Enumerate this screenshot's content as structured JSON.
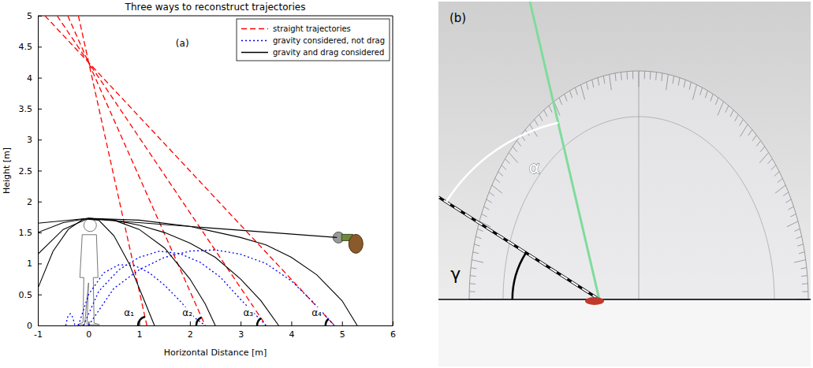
{
  "chart_data": {
    "type": "line",
    "title": "Three ways to reconstruct trajectories",
    "xlabel": "Horizontal Distance [m]",
    "ylabel": "Height [m]",
    "xlim": [
      -1,
      6
    ],
    "ylim": [
      0,
      5
    ],
    "xticks": [
      -1,
      0,
      1,
      2,
      3,
      4,
      5,
      6
    ],
    "yticks": [
      0,
      0.5,
      1,
      1.5,
      2,
      2.5,
      3,
      3.5,
      4,
      4.5,
      5
    ],
    "grid": false,
    "legend": "upper right",
    "series": [
      {
        "name": "straight trajectories",
        "color": "#ff0000",
        "line_style": "dashed",
        "lines": [
          {
            "x": [
              -0.2,
              1.15
            ],
            "values": [
              5,
              0
            ]
          },
          {
            "x": [
              -0.41,
              2.3
            ],
            "values": [
              5,
              0
            ]
          },
          {
            "x": [
              -0.62,
              3.5
            ],
            "values": [
              5,
              0
            ]
          },
          {
            "x": [
              -0.86,
              4.85
            ],
            "values": [
              5,
              0
            ]
          }
        ]
      },
      {
        "name": "gravity considered, not drag",
        "color": "#0000ff",
        "line_style": "dotted",
        "lines": [
          {
            "x": [
              -0.45,
              -0.41,
              -0.36,
              -0.31,
              -0.27
            ],
            "values": [
              0,
              0.14,
              0.19,
              0.13,
              0
            ]
          },
          {
            "x": [
              -0.2,
              0,
              0.3,
              0.6,
              0.9,
              1.2,
              1.5,
              1.8,
              2.1,
              2.3
            ],
            "values": [
              0,
              0.5,
              0.85,
              0.98,
              0.97,
              0.85,
              0.65,
              0.4,
              0.12,
              0
            ]
          },
          {
            "x": [
              -0.1,
              0.2,
              0.6,
              1,
              1.4,
              1.8,
              2.2,
              2.6,
              3,
              3.5
            ],
            "values": [
              0,
              0.55,
              0.9,
              1.1,
              1.2,
              1.16,
              1.02,
              0.78,
              0.42,
              0
            ]
          },
          {
            "x": [
              0,
              0.5,
              1,
              1.5,
              2,
              2.5,
              3,
              3.5,
              4,
              4.4,
              4.85
            ],
            "values": [
              0,
              0.6,
              0.9,
              1.1,
              1.2,
              1.22,
              1.15,
              1.0,
              0.72,
              0.4,
              0
            ]
          }
        ]
      },
      {
        "name": "gravity and drag considered",
        "color": "#000000",
        "line_style": "solid",
        "lines": [
          {
            "x": [
              -1,
              -0.7,
              -0.4,
              -0.1,
              0.2,
              0.5,
              0.8,
              1.1,
              1.3
            ],
            "values": [
              0.6,
              1.2,
              1.55,
              1.72,
              1.7,
              1.45,
              1.0,
              0.4,
              0
            ]
          },
          {
            "x": [
              -1,
              -0.5,
              0,
              0.5,
              1,
              1.5,
              2,
              2.3,
              2.5
            ],
            "values": [
              1.15,
              1.55,
              1.73,
              1.7,
              1.55,
              1.25,
              0.75,
              0.35,
              0
            ]
          },
          {
            "x": [
              -1,
              -0.5,
              0,
              0.5,
              1,
              1.5,
              2,
              2.5,
              3,
              3.4,
              3.75
            ],
            "values": [
              1.5,
              1.66,
              1.73,
              1.7,
              1.62,
              1.5,
              1.33,
              1.1,
              0.75,
              0.4,
              0
            ]
          },
          {
            "x": [
              -1,
              0,
              1,
              2,
              3,
              3.5,
              4,
              4.5,
              5,
              5.3
            ],
            "values": [
              1.65,
              1.73,
              1.7,
              1.6,
              1.42,
              1.3,
              1.1,
              0.82,
              0.4,
              0
            ]
          }
        ]
      },
      {
        "color": "#000000",
        "line_style": "solid",
        "lines": [
          {
            "x": [
              0,
              4.9
            ],
            "values": [
              1.72,
              1.42
            ]
          }
        ]
      }
    ],
    "annotations": [
      {
        "text": "(a)",
        "x": 1.85,
        "y": 4.55
      },
      {
        "text": "α₁",
        "x": 0.8,
        "y": 0.2
      },
      {
        "text": "α₂",
        "x": 1.95,
        "y": 0.2
      },
      {
        "text": "α₃",
        "x": 3.15,
        "y": 0.2
      },
      {
        "text": "α₄",
        "x": 4.5,
        "y": 0.2
      }
    ]
  },
  "photo_panel": {
    "label": "(b)",
    "alpha_label": "α",
    "gamma_label": "γ"
  }
}
